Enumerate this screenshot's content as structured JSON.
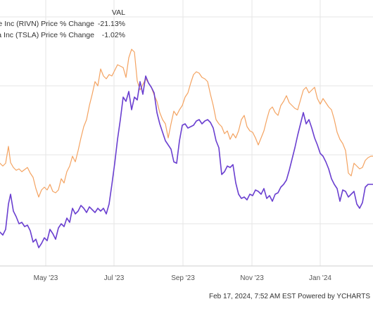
{
  "legend": {
    "header": "VAL",
    "rows": [
      {
        "name": "Rivian Automotive Inc (RIVN) Price % Change",
        "value": "-21.13%"
      },
      {
        "name": "Tesla Inc (TSLA) Price % Change",
        "value": "-1.02%"
      }
    ]
  },
  "footer": {
    "text": "Feb 17, 2024, 7:52 AM EST Powered by YCHARTS"
  },
  "colors": {
    "tsla": "#f4a361",
    "rivn": "#6a3fd0",
    "grid": "#e6e6e6"
  },
  "chart_data": {
    "type": "line",
    "x_ticks": [
      "May '23",
      "Jul '23",
      "Sep '23",
      "Nov '23",
      "Jan '24"
    ],
    "series": [
      {
        "name": "Tesla Inc (TSLA) Price % Change",
        "color": "#f4a361",
        "points": [
          [
            0,
            232
          ],
          [
            4,
            236
          ],
          [
            8,
            232
          ],
          [
            12,
            208
          ],
          [
            15,
            231
          ],
          [
            19,
            238
          ],
          [
            23,
            242
          ],
          [
            27,
            240
          ],
          [
            31,
            244
          ],
          [
            35,
            241
          ],
          [
            39,
            238
          ],
          [
            43,
            246
          ],
          [
            47,
            252
          ],
          [
            51,
            268
          ],
          [
            55,
            280
          ],
          [
            59,
            270
          ],
          [
            63,
            266
          ],
          [
            67,
            270
          ],
          [
            71,
            262
          ],
          [
            75,
            272
          ],
          [
            79,
            274
          ],
          [
            83,
            270
          ],
          [
            87,
            254
          ],
          [
            91,
            260
          ],
          [
            95,
            244
          ],
          [
            99,
            236
          ],
          [
            103,
            222
          ],
          [
            107,
            230
          ],
          [
            111,
            214
          ],
          [
            115,
            196
          ],
          [
            119,
            180
          ],
          [
            123,
            170
          ],
          [
            127,
            150
          ],
          [
            131,
            134
          ],
          [
            135,
            116
          ],
          [
            139,
            122
          ],
          [
            143,
            98
          ],
          [
            147,
            108
          ],
          [
            151,
            112
          ],
          [
            155,
            106
          ],
          [
            159,
            108
          ],
          [
            163,
            100
          ],
          [
            167,
            92
          ],
          [
            171,
            94
          ],
          [
            175,
            96
          ],
          [
            179,
            110
          ],
          [
            183,
            82
          ],
          [
            187,
            70
          ],
          [
            191,
            74
          ],
          [
            195,
            115
          ],
          [
            199,
            128
          ],
          [
            203,
            120
          ],
          [
            207,
            112
          ],
          [
            211,
            118
          ],
          [
            215,
            124
          ],
          [
            219,
            135
          ],
          [
            223,
            144
          ],
          [
            227,
            160
          ],
          [
            231,
            170
          ],
          [
            235,
            176
          ],
          [
            239,
            196
          ],
          [
            243,
            176
          ],
          [
            247,
            158
          ],
          [
            251,
            164
          ],
          [
            255,
            156
          ],
          [
            259,
            150
          ],
          [
            263,
            138
          ],
          [
            267,
            132
          ],
          [
            271,
            118
          ],
          [
            275,
            106
          ],
          [
            279,
            102
          ],
          [
            283,
            104
          ],
          [
            287,
            110
          ],
          [
            291,
            112
          ],
          [
            295,
            116
          ],
          [
            299,
            134
          ],
          [
            303,
            150
          ],
          [
            307,
            170
          ],
          [
            311,
            176
          ],
          [
            315,
            180
          ],
          [
            319,
            190
          ],
          [
            323,
            186
          ],
          [
            327,
            198
          ],
          [
            331,
            190
          ],
          [
            335,
            196
          ],
          [
            339,
            186
          ],
          [
            343,
            170
          ],
          [
            347,
            164
          ],
          [
            351,
            180
          ],
          [
            355,
            186
          ],
          [
            359,
            188
          ],
          [
            363,
            196
          ],
          [
            367,
            206
          ],
          [
            371,
            196
          ],
          [
            375,
            186
          ],
          [
            379,
            170
          ],
          [
            383,
            156
          ],
          [
            387,
            152
          ],
          [
            391,
            160
          ],
          [
            395,
            164
          ],
          [
            399,
            150
          ],
          [
            403,
            144
          ],
          [
            407,
            136
          ],
          [
            411,
            146
          ],
          [
            415,
            150
          ],
          [
            419,
            154
          ],
          [
            423,
            156
          ],
          [
            427,
            142
          ],
          [
            431,
            128
          ],
          [
            435,
            124
          ],
          [
            439,
            132
          ],
          [
            443,
            128
          ],
          [
            447,
            124
          ],
          [
            451,
            140
          ],
          [
            455,
            148
          ],
          [
            459,
            140
          ],
          [
            463,
            146
          ],
          [
            467,
            152
          ],
          [
            471,
            156
          ],
          [
            475,
            170
          ],
          [
            479,
            188
          ],
          [
            483,
            198
          ],
          [
            487,
            204
          ],
          [
            491,
            214
          ],
          [
            495,
            246
          ],
          [
            499,
            250
          ],
          [
            503,
            232
          ],
          [
            507,
            236
          ],
          [
            511,
            240
          ],
          [
            515,
            238
          ],
          [
            519,
            228
          ],
          [
            523,
            224
          ],
          [
            527,
            222
          ],
          [
            530,
            222
          ]
        ]
      },
      {
        "name": "Rivian Automotive Inc (RIVN) Price % Change",
        "color": "#6a3fd0",
        "points": [
          [
            0,
            330
          ],
          [
            4,
            334
          ],
          [
            8,
            326
          ],
          [
            12,
            290
          ],
          [
            15,
            276
          ],
          [
            19,
            300
          ],
          [
            23,
            308
          ],
          [
            27,
            318
          ],
          [
            31,
            316
          ],
          [
            35,
            322
          ],
          [
            39,
            320
          ],
          [
            43,
            328
          ],
          [
            47,
            344
          ],
          [
            51,
            340
          ],
          [
            55,
            352
          ],
          [
            59,
            346
          ],
          [
            63,
            338
          ],
          [
            67,
            342
          ],
          [
            71,
            326
          ],
          [
            75,
            332
          ],
          [
            79,
            340
          ],
          [
            83,
            324
          ],
          [
            87,
            318
          ],
          [
            91,
            322
          ],
          [
            95,
            310
          ],
          [
            99,
            316
          ],
          [
            103,
            296
          ],
          [
            107,
            304
          ],
          [
            111,
            300
          ],
          [
            115,
            292
          ],
          [
            119,
            296
          ],
          [
            123,
            302
          ],
          [
            127,
            294
          ],
          [
            131,
            298
          ],
          [
            135,
            302
          ],
          [
            139,
            296
          ],
          [
            143,
            300
          ],
          [
            147,
            296
          ],
          [
            151,
            304
          ],
          [
            155,
            290
          ],
          [
            159,
            262
          ],
          [
            163,
            232
          ],
          [
            167,
            198
          ],
          [
            171,
            170
          ],
          [
            175,
            138
          ],
          [
            179,
            144
          ],
          [
            183,
            130
          ],
          [
            187,
            156
          ],
          [
            191,
            138
          ],
          [
            195,
            142
          ],
          [
            199,
            116
          ],
          [
            203,
            134
          ],
          [
            207,
            108
          ],
          [
            211,
            118
          ],
          [
            215,
            124
          ],
          [
            219,
            132
          ],
          [
            223,
            160
          ],
          [
            227,
            176
          ],
          [
            231,
            188
          ],
          [
            235,
            200
          ],
          [
            239,
            206
          ],
          [
            243,
            212
          ],
          [
            247,
            230
          ],
          [
            251,
            232
          ],
          [
            255,
            200
          ],
          [
            259,
            178
          ],
          [
            263,
            176
          ],
          [
            267,
            182
          ],
          [
            271,
            180
          ],
          [
            275,
            178
          ],
          [
            279,
            172
          ],
          [
            283,
            170
          ],
          [
            287,
            176
          ],
          [
            291,
            172
          ],
          [
            295,
            170
          ],
          [
            299,
            174
          ],
          [
            303,
            182
          ],
          [
            307,
            200
          ],
          [
            311,
            210
          ],
          [
            315,
            248
          ],
          [
            319,
            244
          ],
          [
            323,
            236
          ],
          [
            327,
            238
          ],
          [
            331,
            234
          ],
          [
            335,
            260
          ],
          [
            339,
            276
          ],
          [
            343,
            282
          ],
          [
            347,
            280
          ],
          [
            351,
            284
          ],
          [
            355,
            276
          ],
          [
            359,
            278
          ],
          [
            363,
            270
          ],
          [
            367,
            272
          ],
          [
            371,
            276
          ],
          [
            375,
            268
          ],
          [
            379,
            282
          ],
          [
            383,
            278
          ],
          [
            387,
            286
          ],
          [
            391,
            276
          ],
          [
            395,
            274
          ],
          [
            399,
            266
          ],
          [
            403,
            262
          ],
          [
            407,
            256
          ],
          [
            411,
            242
          ],
          [
            415,
            226
          ],
          [
            419,
            210
          ],
          [
            423,
            192
          ],
          [
            427,
            176
          ],
          [
            431,
            160
          ],
          [
            435,
            176
          ],
          [
            439,
            170
          ],
          [
            443,
            182
          ],
          [
            447,
            196
          ],
          [
            451,
            206
          ],
          [
            455,
            218
          ],
          [
            459,
            222
          ],
          [
            463,
            230
          ],
          [
            467,
            240
          ],
          [
            471,
            254
          ],
          [
            475,
            262
          ],
          [
            479,
            268
          ],
          [
            483,
            286
          ],
          [
            487,
            270
          ],
          [
            491,
            272
          ],
          [
            495,
            280
          ],
          [
            499,
            276
          ],
          [
            503,
            272
          ],
          [
            507,
            290
          ],
          [
            511,
            296
          ],
          [
            515,
            288
          ],
          [
            519,
            266
          ],
          [
            523,
            262
          ],
          [
            527,
            262
          ],
          [
            530,
            262
          ]
        ]
      }
    ],
    "grid": true,
    "legend_position": "top-left"
  }
}
